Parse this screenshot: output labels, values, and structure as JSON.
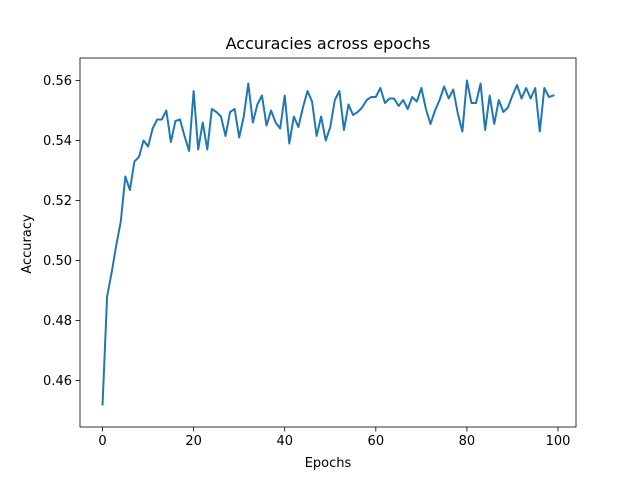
{
  "chart_data": {
    "type": "line",
    "title": "Accuracies across epochs",
    "xlabel": "Epochs",
    "ylabel": "Accuracy",
    "xlim": [
      -4.95,
      103.95
    ],
    "ylim": [
      0.4445,
      0.5675
    ],
    "xticks": [
      0,
      20,
      40,
      60,
      80,
      100
    ],
    "xtick_labels": [
      "0",
      "20",
      "40",
      "60",
      "80",
      "100"
    ],
    "yticks": [
      0.46,
      0.48,
      0.5,
      0.52,
      0.54,
      0.56
    ],
    "ytick_labels": [
      "0.46",
      "0.48",
      "0.50",
      "0.52",
      "0.54",
      "0.56"
    ],
    "grid": false,
    "legend": "none",
    "series": [
      {
        "color": "#1f77b4",
        "x": [
          0,
          1,
          2,
          3,
          4,
          5,
          6,
          7,
          8,
          9,
          10,
          11,
          12,
          13,
          14,
          15,
          16,
          17,
          18,
          19,
          20,
          21,
          22,
          23,
          24,
          25,
          26,
          27,
          28,
          29,
          30,
          31,
          32,
          33,
          34,
          35,
          36,
          37,
          38,
          39,
          40,
          41,
          42,
          43,
          44,
          45,
          46,
          47,
          48,
          49,
          50,
          51,
          52,
          53,
          54,
          55,
          56,
          57,
          58,
          59,
          60,
          61,
          62,
          63,
          64,
          65,
          66,
          67,
          68,
          69,
          70,
          71,
          72,
          73,
          74,
          75,
          76,
          77,
          78,
          79,
          80,
          81,
          82,
          83,
          84,
          85,
          86,
          87,
          88,
          89,
          90,
          91,
          92,
          93,
          94,
          95,
          96,
          97,
          98,
          99
        ],
        "values": [
          0.452,
          0.488,
          0.496,
          0.505,
          0.513,
          0.528,
          0.5235,
          0.533,
          0.5345,
          0.54,
          0.538,
          0.544,
          0.547,
          0.547,
          0.55,
          0.5395,
          0.5465,
          0.547,
          0.5415,
          0.5365,
          0.5565,
          0.537,
          0.546,
          0.537,
          0.5505,
          0.5495,
          0.548,
          0.5415,
          0.5495,
          0.5505,
          0.541,
          0.548,
          0.559,
          0.546,
          0.552,
          0.555,
          0.545,
          0.55,
          0.546,
          0.544,
          0.555,
          0.539,
          0.548,
          0.5445,
          0.551,
          0.5565,
          0.553,
          0.5415,
          0.548,
          0.54,
          0.5445,
          0.5535,
          0.5565,
          0.5435,
          0.552,
          0.5485,
          0.5495,
          0.551,
          0.5535,
          0.5545,
          0.5545,
          0.5575,
          0.5525,
          0.554,
          0.554,
          0.5515,
          0.5535,
          0.5505,
          0.5545,
          0.553,
          0.5575,
          0.5505,
          0.5455,
          0.55,
          0.5535,
          0.558,
          0.554,
          0.557,
          0.549,
          0.543,
          0.56,
          0.5525,
          0.5525,
          0.559,
          0.5435,
          0.555,
          0.5455,
          0.5535,
          0.5495,
          0.551,
          0.555,
          0.5585,
          0.554,
          0.5575,
          0.554,
          0.5575,
          0.543,
          0.5575,
          0.5545,
          0.555
        ]
      }
    ]
  }
}
